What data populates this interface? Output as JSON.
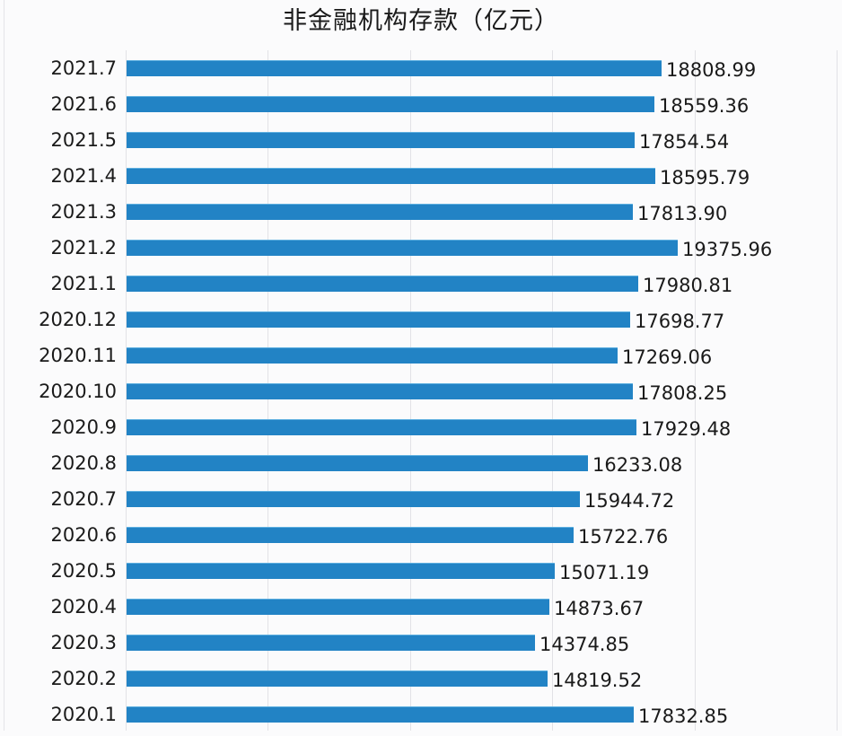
{
  "title": "非金融机构存款（亿元）",
  "colors": {
    "bar": "#2283c5",
    "background": "#fbfbfc",
    "grid": "#e2e2e6",
    "text": "#1a1a1a"
  },
  "chart_data": {
    "type": "bar",
    "orientation": "horizontal",
    "title": "非金融机构存款（亿元）",
    "xlabel": "",
    "ylabel": "",
    "xlim": [
      0,
      25000
    ],
    "grid": true,
    "legend": null,
    "categories": [
      "2021.7",
      "2021.6",
      "2021.5",
      "2021.4",
      "2021.3",
      "2021.2",
      "2021.1",
      "2020.12",
      "2020.11",
      "2020.10",
      "2020.9",
      "2020.8",
      "2020.7",
      "2020.6",
      "2020.5",
      "2020.4",
      "2020.3",
      "2020.2",
      "2020.1"
    ],
    "values": [
      18808.99,
      18559.36,
      17854.54,
      18595.79,
      17813.9,
      19375.96,
      17980.81,
      17698.77,
      17269.06,
      17808.25,
      17929.48,
      16233.08,
      15944.72,
      15722.76,
      15071.19,
      14873.67,
      14374.85,
      14819.52,
      17832.85
    ],
    "labels": [
      "18808.99",
      "18559.36",
      "17854.54",
      "18595.79",
      "17813.90",
      "19375.96",
      "17980.81",
      "17698.77",
      "17269.06",
      "17808.25",
      "17929.48",
      "16233.08",
      "15944.72",
      "15722.76",
      "15071.19",
      "14873.67",
      "14374.85",
      "14819.52",
      "17832.85"
    ]
  }
}
